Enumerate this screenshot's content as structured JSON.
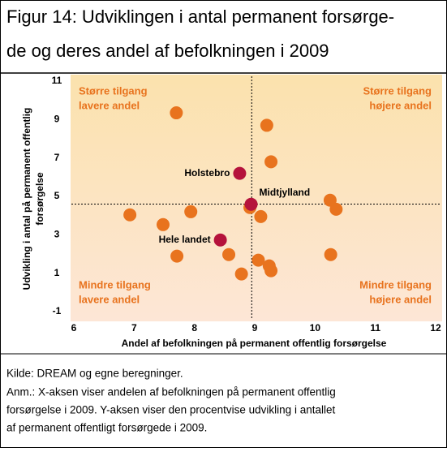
{
  "chart_data": {
    "type": "scatter",
    "title": [
      "Figur 14: Udviklingen i antal permanent forsørge-",
      "de og deres andel af befolkningen i 2009"
    ],
    "xlabel": "Andel af befolkningen på permanent offentlig forsørgelse",
    "ylabel": [
      "Udvikling i antal på permanent offentlig",
      "forsørgelse"
    ],
    "xlim": [
      6,
      12
    ],
    "xticks": [
      6,
      7,
      8,
      9,
      10,
      11,
      12
    ],
    "ylim": [
      -1,
      11
    ],
    "yticks": [
      -1,
      1,
      3,
      5,
      7,
      9,
      11
    ],
    "ref_x": 8.95,
    "ref_y": 4.6,
    "series": [
      {
        "color": "#e8731e",
        "x": [
          7.7,
          9.2,
          9.27,
          8.92,
          9.1,
          10.25,
          10.35,
          6.93,
          7.94,
          7.48,
          8.57,
          7.71,
          9.06,
          9.24,
          9.27,
          8.78,
          10.26
        ],
        "y": [
          9.35,
          8.7,
          6.8,
          4.42,
          3.95,
          4.8,
          4.33,
          4.04,
          4.2,
          3.53,
          1.97,
          1.89,
          1.68,
          1.38,
          1.13,
          0.96,
          1.97
        ]
      },
      {
        "color": "#b5123c",
        "x": [
          8.75,
          8.94,
          8.43
        ],
        "y": [
          6.2,
          4.59,
          2.73
        ],
        "labels": [
          "Holstebro",
          "Midtjylland",
          "Hele landet"
        ]
      }
    ],
    "annotations": [
      [
        "Større tilgang",
        "lavere andel"
      ],
      [
        "Større tilgang",
        "højere andel"
      ],
      [
        "Mindre tilgang",
        "lavere andel"
      ],
      [
        "Mindre tilgang",
        "højere andel"
      ]
    ],
    "source": "Kilde: DREAM og egne beregninger.",
    "note": [
      "Anm.: X-aksen viser andelen af befolkningen på permanent offentlig",
      "forsørgelse i 2009. Y-aksen viser den procentvise udvikling i antallet",
      "af permanent offentligt forsørgede i 2009."
    ]
  }
}
